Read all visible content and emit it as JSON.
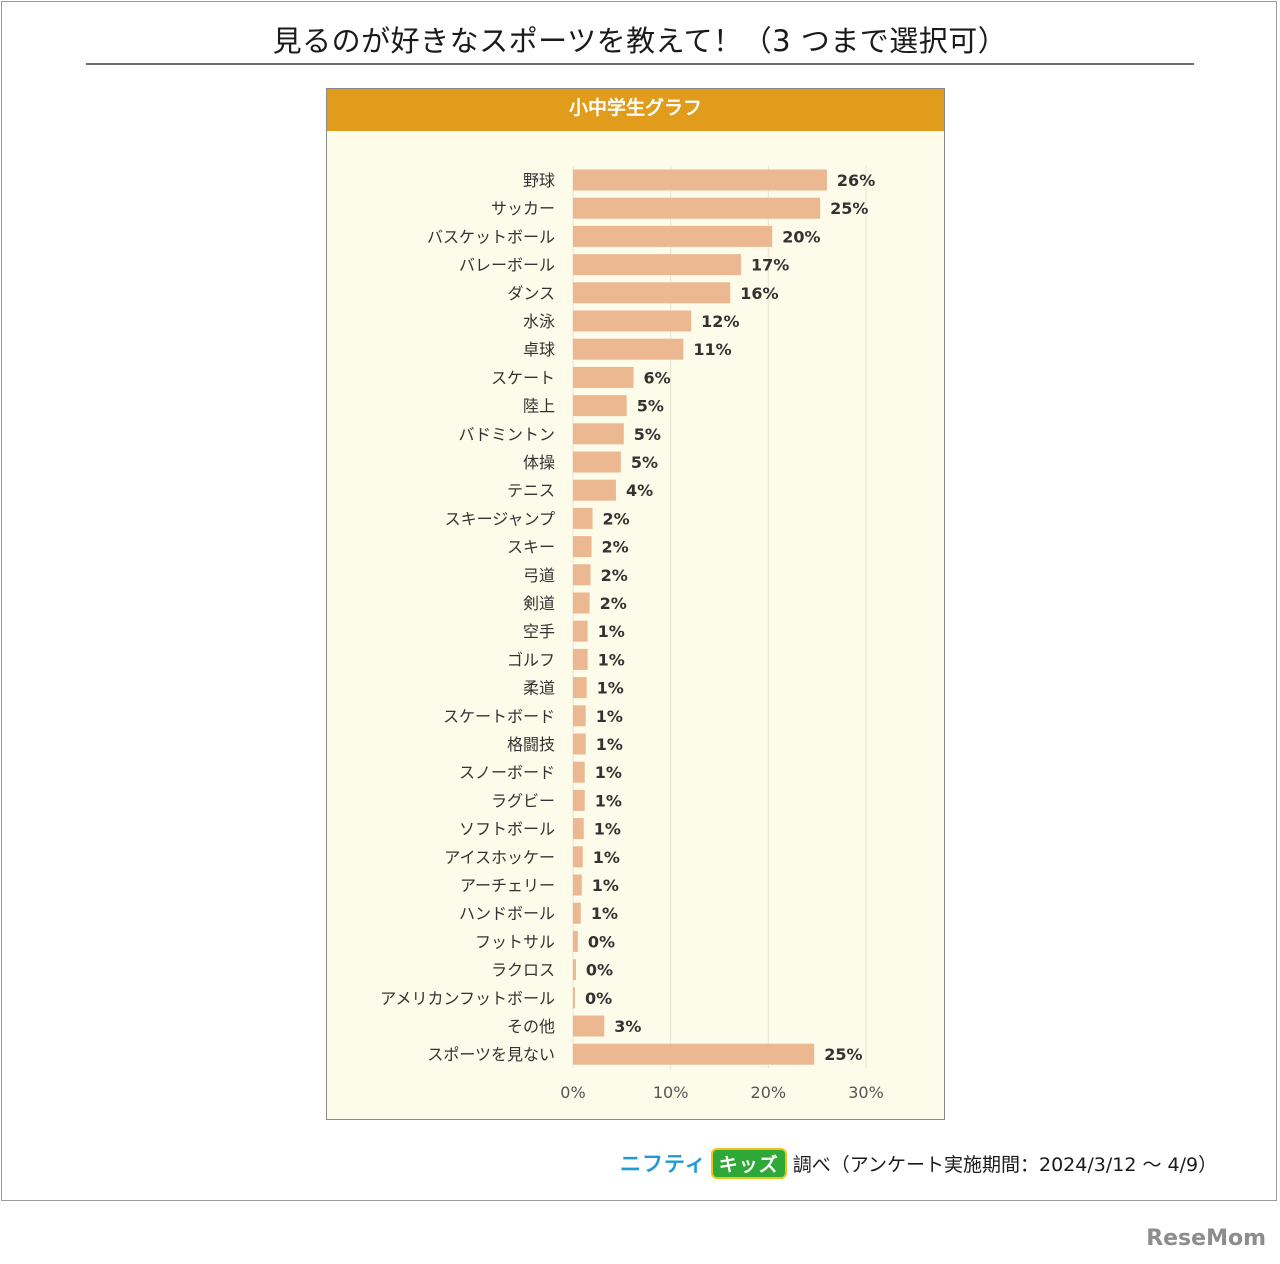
{
  "page": {
    "title": "見るのが好きなスポーツを教えて！（3 つまで選択可）",
    "footer_brand_a": "ニフティ",
    "footer_brand_b": "キッズ",
    "footer_note": "調べ（アンケート実施期間：2024/3/12 ～ 4/9）",
    "watermark": "ReseMom"
  },
  "colors": {
    "bar": "#ecb891",
    "panel_bg": "#fdfbe9",
    "header_bg": "#e09c1a",
    "grid": "#e6e3cf",
    "label": "#333333"
  },
  "chart_data": {
    "type": "bar",
    "orientation": "horizontal",
    "title": "小中学生グラフ",
    "xlabel": "",
    "ylabel": "",
    "xlim": [
      0,
      30
    ],
    "xticks": [
      "0%",
      "10%",
      "20%",
      "30%"
    ],
    "xtick_values": [
      0,
      10,
      20,
      30
    ],
    "grid": true,
    "categories": [
      "野球",
      "サッカー",
      "バスケットボール",
      "バレーボール",
      "ダンス",
      "水泳",
      "卓球",
      "スケート",
      "陸上",
      "バドミントン",
      "体操",
      "テニス",
      "スキージャンプ",
      "スキー",
      "弓道",
      "剣道",
      "空手",
      "ゴルフ",
      "柔道",
      "スケートボード",
      "格闘技",
      "スノーボード",
      "ラグビー",
      "ソフトボール",
      "アイスホッケー",
      "アーチェリー",
      "ハンドボール",
      "フットサル",
      "ラクロス",
      "アメリカンフットボール",
      "その他",
      "スポーツを見ない"
    ],
    "values": [
      26,
      25.3,
      20.4,
      17.2,
      16.1,
      12.1,
      11.3,
      6.2,
      5.5,
      5.2,
      4.9,
      4.4,
      2.0,
      1.9,
      1.8,
      1.7,
      1.5,
      1.5,
      1.4,
      1.3,
      1.3,
      1.2,
      1.2,
      1.1,
      1.0,
      0.9,
      0.8,
      0.5,
      0.3,
      0.2,
      3.2,
      24.7
    ],
    "value_labels": [
      "26%",
      "25%",
      "20%",
      "17%",
      "16%",
      "12%",
      "11%",
      "6%",
      "5%",
      "5%",
      "5%",
      "4%",
      "2%",
      "2%",
      "2%",
      "2%",
      "1%",
      "1%",
      "1%",
      "1%",
      "1%",
      "1%",
      "1%",
      "1%",
      "1%",
      "1%",
      "1%",
      "0%",
      "0%",
      "0%",
      "3%",
      "25%"
    ]
  }
}
